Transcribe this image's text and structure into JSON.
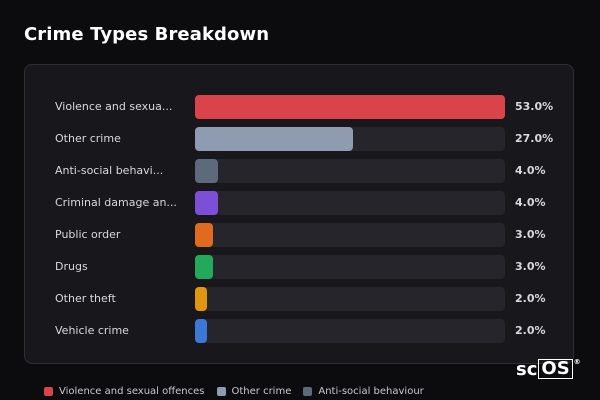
{
  "title": "Crime Types Breakdown",
  "logo": {
    "prefix": "sc",
    "boxed": "OS",
    "mark": "®"
  },
  "chart_data": {
    "type": "bar",
    "orientation": "horizontal",
    "xlim": [
      0,
      53
    ],
    "grid": false,
    "legend_position": "bottom",
    "categories": [
      "Violence and sexual offences",
      "Other crime",
      "Anti-social behaviour",
      "Criminal damage and arson",
      "Public order",
      "Drugs",
      "Other theft",
      "Vehicle crime"
    ],
    "display_labels": [
      "Violence and sexua...",
      "Other crime",
      "Anti-social behavi...",
      "Criminal damage an...",
      "Public order",
      "Drugs",
      "Other theft",
      "Vehicle crime"
    ],
    "values": [
      53.0,
      27.0,
      4.0,
      4.0,
      3.0,
      3.0,
      2.0,
      2.0
    ],
    "value_labels": [
      "53.0%",
      "27.0%",
      "4.0%",
      "4.0%",
      "3.0%",
      "3.0%",
      "2.0%",
      "2.0%"
    ],
    "colors": [
      "#d9434a",
      "#8e9bb0",
      "#5d6a7d",
      "#7b4fd6",
      "#e06a1e",
      "#22a95a",
      "#e0960e",
      "#3c78d8"
    ],
    "legend": [
      {
        "label": "Violence and sexual offences",
        "color": "#d9434a"
      },
      {
        "label": "Other crime",
        "color": "#8e9bb0"
      },
      {
        "label": "Anti-social behaviour",
        "color": "#5d6a7d"
      }
    ]
  }
}
